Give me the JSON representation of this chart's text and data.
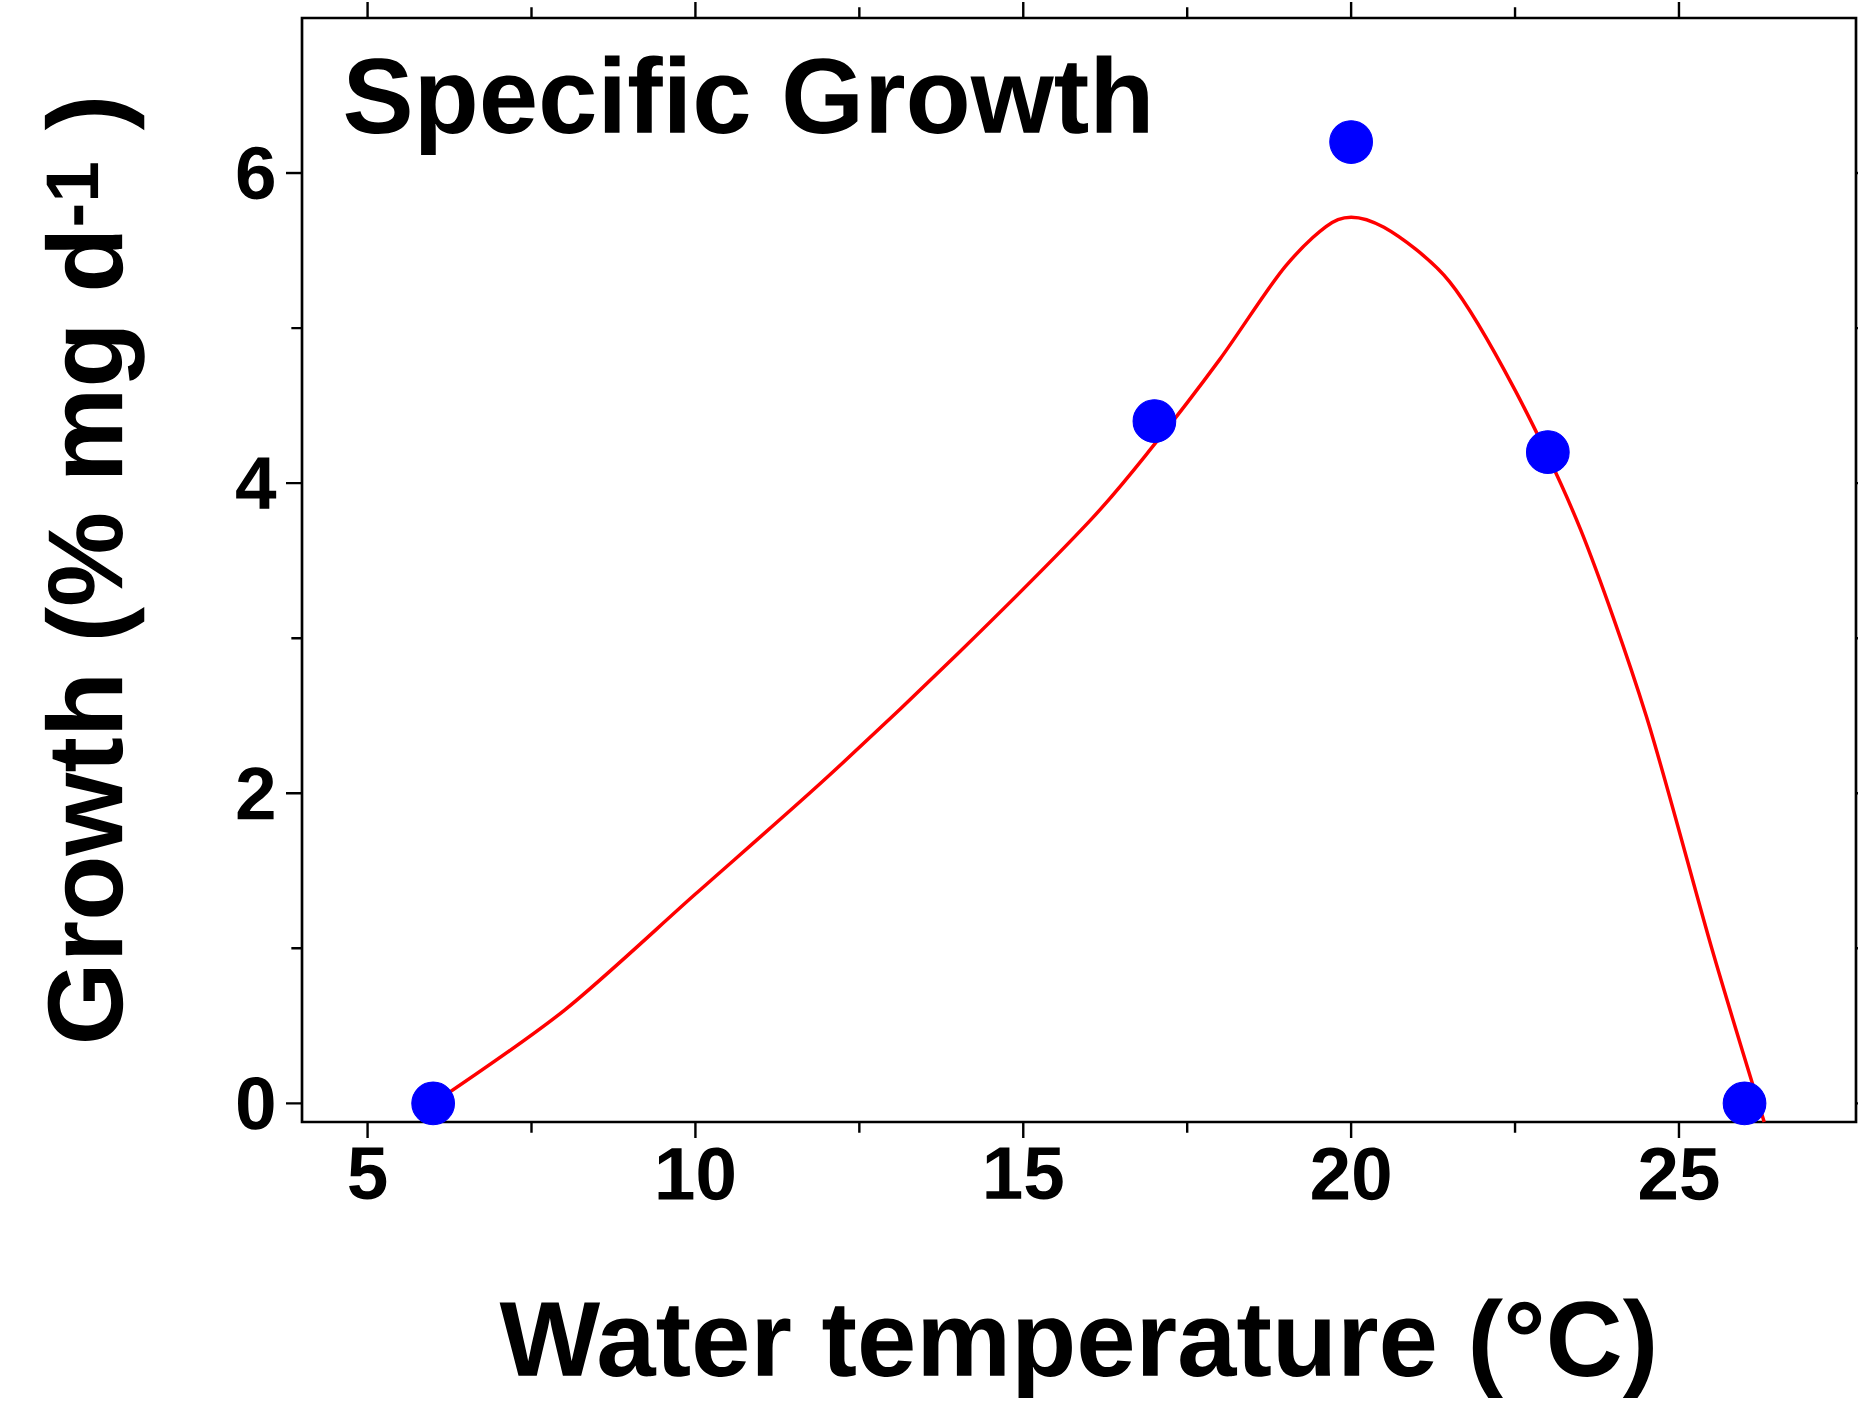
{
  "chart_data": {
    "type": "scatter",
    "title": "Specific Growth",
    "xlabel": "Water temperature (°C)",
    "ylabel": "Growth (% mg d$^{-1}$ )",
    "xlim": [
      4,
      27.7
    ],
    "ylim": [
      -0.12,
      7
    ],
    "xticks": [
      5,
      10,
      15,
      20,
      25
    ],
    "yticks": [
      0,
      2,
      4,
      6
    ],
    "series": [
      {
        "type": "line",
        "color": "#ff0000",
        "marker": "none",
        "x": [
          6,
          8,
          10,
          12,
          14,
          16,
          17,
          18,
          19,
          19.8,
          20.5,
          21.5,
          22.5,
          23.5,
          24.5,
          25.5,
          26.3
        ],
        "values": [
          0,
          0.6,
          1.35,
          2.1,
          2.9,
          3.75,
          4.25,
          4.8,
          5.4,
          5.7,
          5.65,
          5.3,
          4.6,
          3.7,
          2.5,
          1.0,
          -0.12
        ]
      },
      {
        "color": "#0000ff",
        "marker": "circle",
        "x": [
          6,
          17,
          20,
          23,
          26
        ],
        "values": [
          0,
          4.4,
          6.2,
          4.2,
          0
        ]
      }
    ]
  }
}
